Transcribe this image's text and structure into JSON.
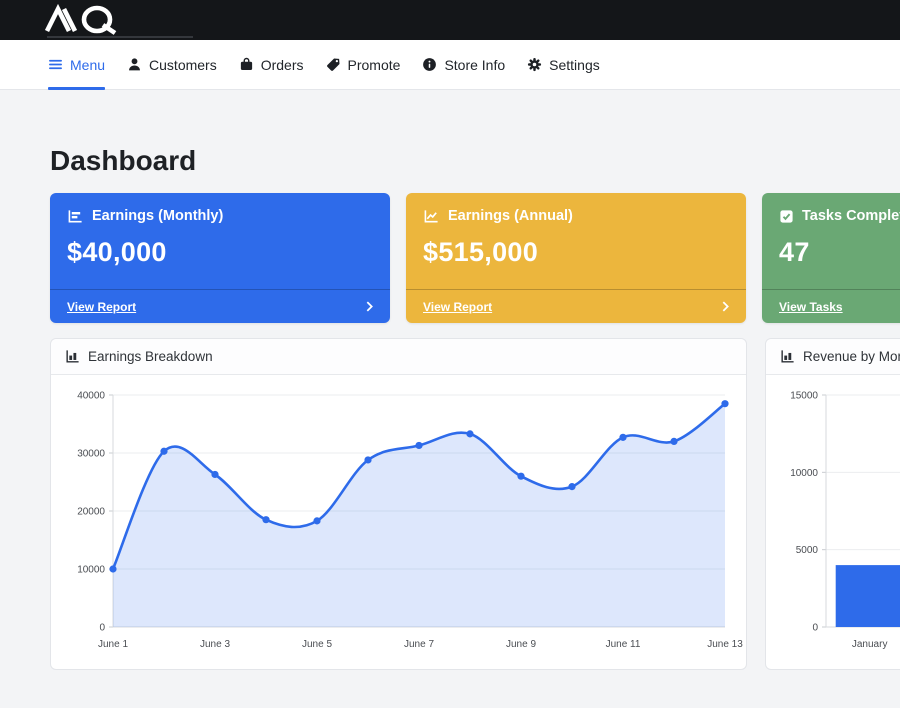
{
  "brand": {
    "logo": "MQ"
  },
  "colors": {
    "primary": "#2e6bea",
    "warning": "#ecb63d",
    "success": "#6aa874",
    "topbar_bg": "#141619",
    "page_bg": "#f3f4f6"
  },
  "nav": {
    "items": [
      {
        "label": "Menu",
        "icon": "hamburger",
        "active": true
      },
      {
        "label": "Customers",
        "icon": "person",
        "active": false
      },
      {
        "label": "Orders",
        "icon": "shopping-bag",
        "active": false
      },
      {
        "label": "Promote",
        "icon": "tag",
        "active": false
      },
      {
        "label": "Store Info",
        "icon": "info-circle",
        "active": false
      },
      {
        "label": "Settings",
        "icon": "gear",
        "active": false
      }
    ]
  },
  "page": {
    "title": "Dashboard"
  },
  "cards": [
    {
      "title": "Earnings (Monthly)",
      "value": "$40,000",
      "link_label": "View Report",
      "color": "#2e6bea",
      "icon": "bar-chart"
    },
    {
      "title": "Earnings (Annual)",
      "value": "$515,000",
      "link_label": "View Report",
      "color": "#ecb63d",
      "icon": "line-chart"
    },
    {
      "title": "Tasks Completed",
      "value": "47",
      "link_label": "View Tasks",
      "color": "#6aa874",
      "icon": "check-square"
    }
  ],
  "chart_data": [
    {
      "type": "area",
      "title": "Earnings Breakdown",
      "x": [
        "June 1",
        "June 2",
        "June 3",
        "June 4",
        "June 5",
        "June 6",
        "June 7",
        "June 8",
        "June 9",
        "June 10",
        "June 11",
        "June 12",
        "June 13"
      ],
      "values": [
        10000,
        30300,
        26300,
        18500,
        18300,
        28800,
        31300,
        33300,
        26000,
        24200,
        32700,
        32000,
        38500
      ],
      "ylim": [
        0,
        40000
      ],
      "yticks": [
        0,
        10000,
        20000,
        30000,
        40000
      ],
      "xtick_every": 2,
      "line_color": "#2e6bea",
      "fill_color": "rgba(46,107,234,0.16)",
      "grid": true,
      "legend": "none"
    },
    {
      "type": "bar",
      "title": "Revenue by Month",
      "categories": [
        "January"
      ],
      "values": [
        4000
      ],
      "ylim": [
        0,
        15000
      ],
      "yticks": [
        0,
        5000,
        10000,
        15000
      ],
      "bar_color": "#2e6bea",
      "grid": true,
      "legend": "none"
    }
  ]
}
